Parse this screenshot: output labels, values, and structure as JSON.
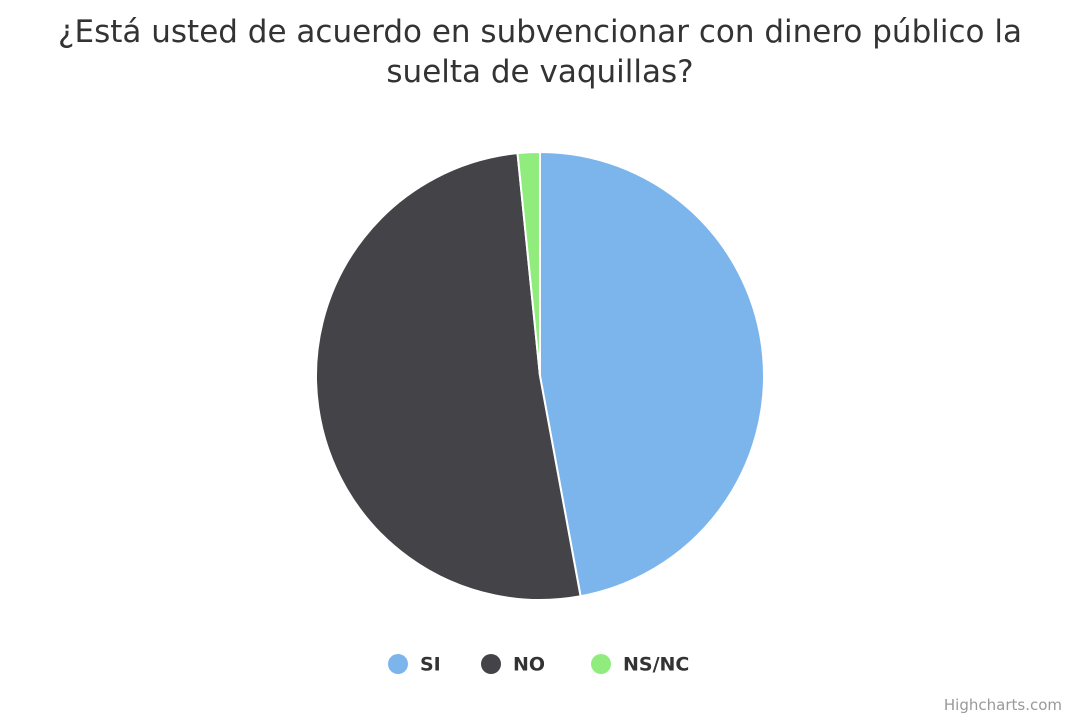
{
  "chart_data": {
    "type": "pie",
    "title": "¿Está usted de acuerdo en subvencionar con dinero público la suelta de vaquillas?",
    "categories": [
      "SI",
      "NO",
      "NS/NC"
    ],
    "values": [
      47.1,
      51.3,
      1.6
    ],
    "colors": [
      "#7cb5ec",
      "#434348",
      "#90ed7d"
    ],
    "credits": "Highcharts.com"
  }
}
